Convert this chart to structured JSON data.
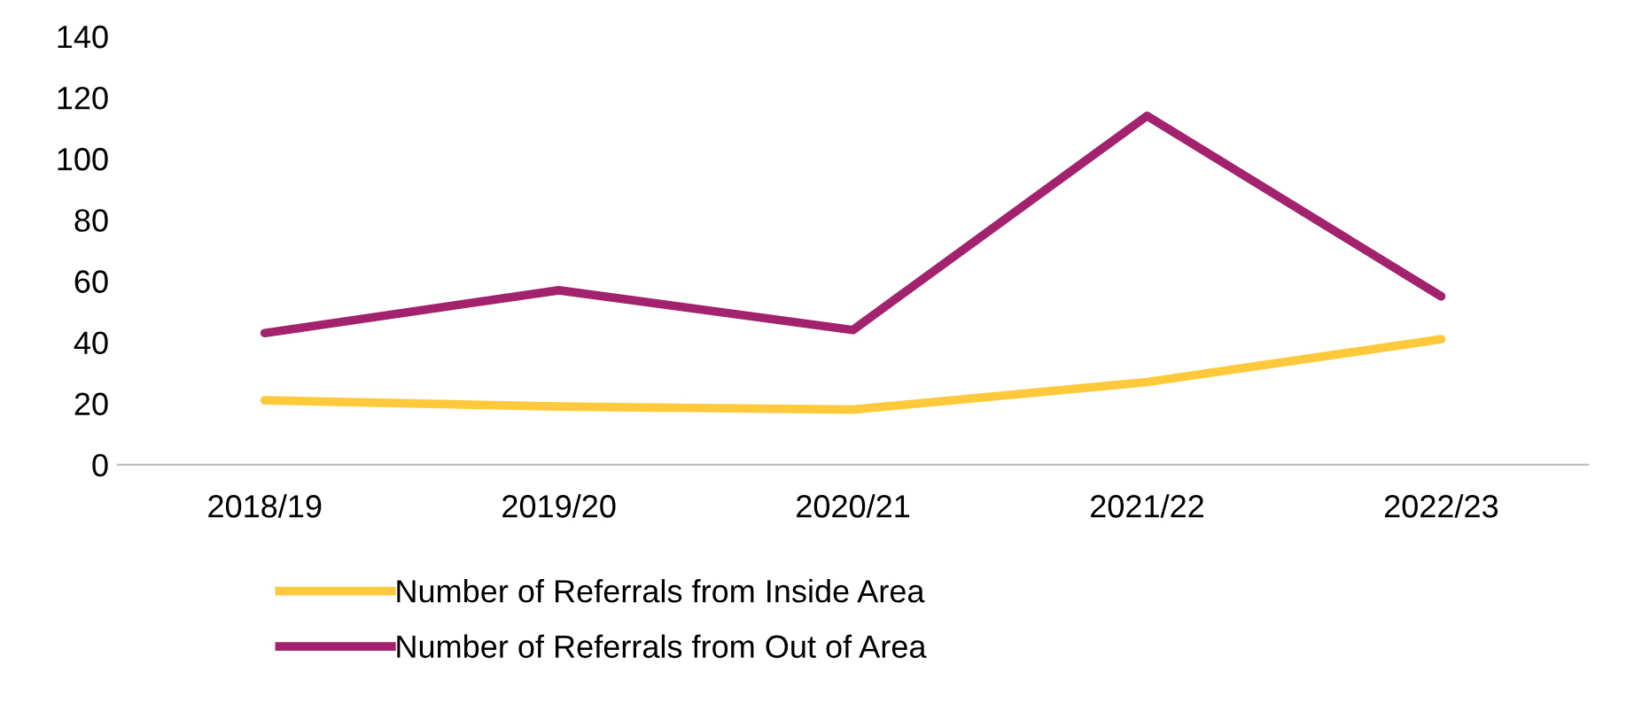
{
  "chart_data": {
    "type": "line",
    "categories": [
      "2018/19",
      "2019/20",
      "2020/21",
      "2021/22",
      "2022/23"
    ],
    "series": [
      {
        "name": "Number of Referrals from Inside Area",
        "color": "#ffc93c",
        "values": [
          21,
          19,
          18,
          27,
          41
        ]
      },
      {
        "name": "Number of Referrals from Out of Area",
        "color": "#a2226e",
        "values": [
          43,
          57,
          44,
          114,
          55
        ]
      }
    ],
    "ylim": [
      0,
      140
    ],
    "yticks": [
      0,
      20,
      40,
      60,
      80,
      100,
      120,
      140
    ],
    "grid": false,
    "legend": "bottom",
    "marker": "none",
    "line_style": "solid"
  }
}
